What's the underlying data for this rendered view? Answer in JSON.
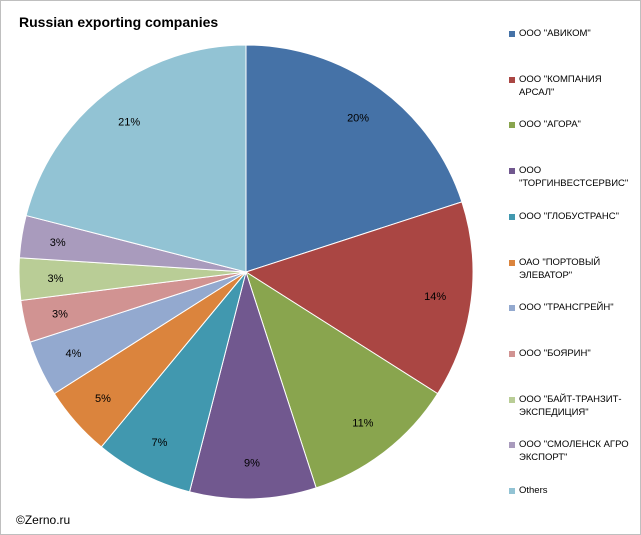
{
  "chart_data": {
    "type": "pie",
    "title": "Russian exporting companies",
    "legend_position": "right",
    "slices": [
      {
        "name": "ООО \"АВИКОМ\"",
        "value": 20,
        "label": "20%",
        "color": "#4572a7"
      },
      {
        "name": "ООО \"КОМПАНИЯ АРСАЛ\"",
        "value": 14,
        "label": "14%",
        "color": "#aa4643"
      },
      {
        "name": "ООО \"АГОРА\"",
        "value": 11,
        "label": "11%",
        "color": "#89a54e"
      },
      {
        "name": "ООО\n\"ТОРГИНВЕСТСЕРВИС\"",
        "value": 9,
        "label": "9%",
        "color": "#71588f"
      },
      {
        "name": "ООО \"ГЛОБУСТРАНС\"",
        "value": 7,
        "label": "7%",
        "color": "#4198af"
      },
      {
        "name": "ОАО \"ПОРТОВЫЙ\nЭЛЕВАТОР\"",
        "value": 5,
        "label": "5%",
        "color": "#db843d"
      },
      {
        "name": "ООО \"ТРАНСГРЕЙН\"",
        "value": 4,
        "label": "4%",
        "color": "#93a9cf"
      },
      {
        "name": "ООО \"БОЯРИН\"",
        "value": 3,
        "label": "3%",
        "color": "#d19392"
      },
      {
        "name": "ООО \"БАЙТ-ТРАНЗИТ-\nЭКСПЕДИЦИЯ\"",
        "value": 3,
        "label": "3%",
        "color": "#b9cd96"
      },
      {
        "name": "ООО \"СМОЛЕНСК АГРО\nЭКСПОРТ\"",
        "value": 3,
        "label": "3%",
        "color": "#a99bbd"
      },
      {
        "name": "Others",
        "value": 21,
        "label": "21%",
        "color": "#92c3d4"
      }
    ]
  },
  "watermark": "©Zerno.ru"
}
